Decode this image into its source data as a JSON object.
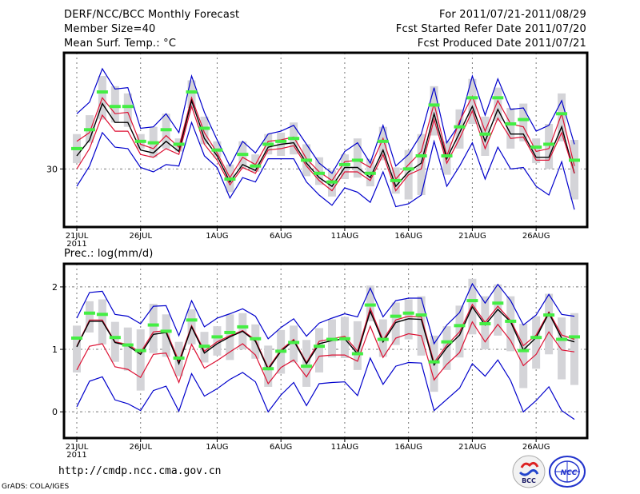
{
  "header": {
    "title": "DERF/NCC/BCC Monthly Forecast",
    "member_size": "Member Size=40",
    "variable": "Mean Surf. Temp.: °C",
    "period": "For 2011/07/21-2011/08/29",
    "started": "Fcst Started Refer Date 2011/07/20",
    "produced": "Fcst Produced Date 2011/07/21"
  },
  "footer": {
    "url": "http://cmdp.ncc.cma.gov.cn",
    "credit": "GrADS: COLA/IGES",
    "logos": [
      {
        "icon": "bcc-logo-icon",
        "label": "BCC"
      },
      {
        "icon": "ncc-logo-icon",
        "label": "NCC"
      }
    ]
  },
  "colors": {
    "envelope_outer": "#0000cc",
    "envelope_inner": "#dd1133",
    "mean": "#000000",
    "marker": "#44ee44",
    "spread_box": "#d4d4d8",
    "grid": "#777777"
  },
  "chart_data": [
    {
      "type": "line",
      "title": "Mean Surf. Temp.: °C",
      "xlabel": "",
      "ylabel": "°C",
      "x_tick_labels": [
        "21JUL",
        "26JUL",
        "1AUG",
        "6AUG",
        "11AUG",
        "16AUG",
        "21AUG",
        "26AUG"
      ],
      "x_tick_days": [
        0,
        5,
        11,
        16,
        21,
        26,
        31,
        36
      ],
      "x_year_label": "2011",
      "y_ticks": [
        30
      ],
      "ylim": [
        26,
        38
      ],
      "grid": true,
      "days": 40,
      "series": [
        {
          "name": "max",
          "role": "outer-upper",
          "values": [
            33.8,
            34.6,
            36.9,
            35.5,
            35.6,
            32.8,
            32.9,
            33.8,
            32.5,
            36.4,
            33.9,
            32.0,
            30.2,
            31.9,
            31.1,
            32.4,
            32.6,
            33.0,
            31.7,
            30.4,
            29.7,
            31.2,
            31.8,
            30.4,
            33.0,
            30.2,
            31.0,
            32.4,
            35.6,
            31.8,
            33.1,
            36.4,
            33.7,
            36.2,
            34.1,
            34.2,
            32.6,
            33.0,
            34.7,
            31.7
          ]
        },
        {
          "name": "upper",
          "role": "inner-upper",
          "values": [
            31.9,
            32.5,
            34.9,
            33.8,
            33.9,
            31.7,
            31.4,
            32.3,
            31.5,
            34.9,
            32.5,
            31.1,
            29.4,
            30.8,
            30.3,
            31.9,
            32.0,
            32.2,
            30.7,
            29.8,
            29.2,
            30.5,
            30.6,
            30.1,
            32.1,
            29.3,
            30.3,
            31.2,
            34.5,
            30.9,
            33.3,
            35.0,
            32.6,
            34.7,
            33.1,
            32.9,
            31.2,
            31.4,
            33.8,
            30.2
          ]
        },
        {
          "name": "mean",
          "role": "mean",
          "values": [
            30.9,
            32.0,
            34.5,
            33.2,
            33.2,
            31.3,
            31.1,
            31.9,
            31.2,
            34.7,
            32.1,
            30.9,
            29.1,
            30.3,
            29.9,
            31.5,
            31.7,
            31.8,
            30.4,
            29.4,
            28.8,
            30.1,
            30.1,
            29.4,
            31.3,
            28.8,
            29.8,
            30.4,
            33.8,
            30.7,
            32.5,
            34.3,
            31.9,
            34.1,
            32.4,
            32.4,
            30.8,
            30.8,
            32.9,
            29.7
          ]
        },
        {
          "name": "lower",
          "role": "inner-lower",
          "values": [
            30.0,
            31.4,
            33.7,
            32.6,
            32.6,
            31.0,
            30.8,
            31.4,
            31.0,
            34.3,
            31.7,
            30.6,
            28.9,
            30.1,
            29.7,
            31.3,
            31.4,
            31.6,
            30.2,
            29.2,
            28.5,
            29.8,
            29.8,
            29.2,
            31.0,
            28.5,
            29.6,
            30.0,
            33.4,
            30.4,
            32.1,
            34.0,
            31.4,
            33.5,
            32.1,
            32.2,
            30.6,
            30.6,
            32.5,
            29.7
          ]
        },
        {
          "name": "min",
          "role": "outer-lower",
          "values": [
            28.8,
            30.2,
            32.5,
            31.5,
            31.4,
            30.1,
            29.8,
            30.3,
            30.2,
            33.2,
            30.9,
            30.1,
            28.0,
            29.4,
            29.1,
            30.7,
            30.7,
            30.7,
            29.1,
            28.2,
            27.5,
            28.7,
            28.4,
            27.7,
            29.8,
            27.4,
            27.6,
            28.2,
            31.9,
            28.8,
            30.2,
            31.8,
            29.3,
            31.5,
            30.0,
            30.1,
            28.8,
            28.2,
            30.5,
            27.2
          ]
        },
        {
          "name": "marker",
          "role": "marker",
          "values": [
            31.4,
            32.7,
            35.3,
            34.3,
            34.3,
            31.9,
            31.8,
            32.7,
            31.7,
            35.3,
            32.8,
            31.3,
            29.3,
            31.0,
            30.2,
            31.7,
            31.9,
            32.1,
            30.6,
            29.7,
            29.1,
            30.3,
            30.6,
            29.7,
            31.9,
            29.2,
            30.0,
            30.9,
            34.4,
            30.9,
            32.9,
            34.9,
            32.4,
            34.9,
            33.1,
            33.4,
            31.5,
            31.7,
            33.8,
            30.6
          ]
        }
      ],
      "spread_boxes": [
        [
          30.4,
          32.4
        ],
        [
          31.8,
          33.7
        ],
        [
          33.4,
          36.4
        ],
        [
          33.2,
          35.7
        ],
        [
          32.9,
          35.2
        ],
        [
          31.4,
          32.4
        ],
        [
          30.8,
          32.9
        ],
        [
          31.4,
          33.8
        ],
        [
          31.2,
          32.1
        ],
        [
          34.2,
          36.1
        ],
        [
          31.7,
          33.6
        ],
        [
          30.8,
          31.9
        ],
        [
          28.4,
          30.3
        ],
        [
          30.0,
          31.9
        ],
        [
          29.8,
          31.0
        ],
        [
          31.0,
          32.4
        ],
        [
          30.9,
          32.5
        ],
        [
          31.0,
          33.2
        ],
        [
          29.5,
          31.7
        ],
        [
          28.9,
          30.8
        ],
        [
          28.1,
          29.9
        ],
        [
          29.3,
          31.0
        ],
        [
          29.4,
          32.1
        ],
        [
          28.8,
          30.7
        ],
        [
          30.6,
          32.9
        ],
        [
          28.3,
          30.1
        ],
        [
          27.9,
          31.3
        ],
        [
          28.2,
          32.4
        ],
        [
          32.3,
          35.7
        ],
        [
          29.6,
          31.9
        ],
        [
          31.4,
          34.1
        ],
        [
          33.1,
          36.2
        ],
        [
          30.9,
          33.6
        ],
        [
          33.3,
          35.6
        ],
        [
          31.4,
          34.2
        ],
        [
          31.9,
          34.5
        ],
        [
          30.4,
          32.1
        ],
        [
          30.0,
          33.1
        ],
        [
          31.9,
          35.2
        ],
        [
          27.9,
          32.0
        ]
      ]
    },
    {
      "type": "line",
      "title": "Prec.: log(mm/d)",
      "xlabel": "",
      "ylabel": "log(mm/d)",
      "x_tick_labels": [
        "21JUL",
        "26JUL",
        "1AUG",
        "6AUG",
        "11AUG",
        "16AUG",
        "21AUG",
        "26AUG"
      ],
      "x_tick_days": [
        0,
        5,
        11,
        16,
        21,
        26,
        31,
        36
      ],
      "x_year_label": "2011",
      "y_ticks": [
        0,
        1,
        2
      ],
      "y_tick_labels": [
        "0",
        "1",
        "2"
      ],
      "ylim": [
        -0.42,
        2.37
      ],
      "grid": true,
      "days": 40,
      "series": [
        {
          "name": "max",
          "role": "outer-upper",
          "values": [
            1.5,
            1.91,
            1.93,
            1.56,
            1.53,
            1.41,
            1.69,
            1.7,
            1.22,
            1.78,
            1.36,
            1.5,
            1.57,
            1.65,
            1.53,
            1.17,
            1.35,
            1.49,
            1.21,
            1.42,
            1.5,
            1.57,
            1.52,
            1.98,
            1.52,
            1.78,
            1.82,
            1.82,
            1.09,
            1.39,
            1.59,
            2.05,
            1.74,
            2.04,
            1.78,
            1.39,
            1.55,
            1.88,
            1.56,
            1.53
          ]
        },
        {
          "name": "upper",
          "role": "inner-upper",
          "values": [
            1.05,
            1.47,
            1.47,
            1.12,
            1.08,
            0.95,
            1.28,
            1.3,
            0.81,
            1.38,
            0.97,
            1.12,
            1.22,
            1.3,
            1.15,
            0.7,
            0.99,
            1.16,
            0.79,
            1.13,
            1.17,
            1.21,
            0.97,
            1.66,
            1.15,
            1.47,
            1.53,
            1.52,
            0.79,
            1.07,
            1.28,
            1.72,
            1.43,
            1.69,
            1.46,
            1.06,
            1.23,
            1.6,
            1.23,
            1.16
          ]
        },
        {
          "name": "mean",
          "role": "mean",
          "values": [
            1.04,
            1.45,
            1.45,
            1.11,
            1.06,
            0.92,
            1.24,
            1.27,
            0.77,
            1.36,
            0.94,
            1.09,
            1.2,
            1.29,
            1.13,
            0.68,
            0.97,
            1.14,
            0.77,
            1.09,
            1.14,
            1.17,
            0.93,
            1.61,
            1.12,
            1.43,
            1.49,
            1.48,
            0.75,
            1.03,
            1.23,
            1.68,
            1.39,
            1.64,
            1.44,
            0.99,
            1.19,
            1.58,
            1.18,
            1.12
          ]
        },
        {
          "name": "lower",
          "role": "inner-lower",
          "values": [
            0.67,
            1.05,
            1.09,
            0.72,
            0.68,
            0.55,
            0.92,
            0.94,
            0.47,
            1.08,
            0.7,
            0.82,
            0.96,
            1.09,
            0.91,
            0.45,
            0.71,
            0.83,
            0.56,
            0.89,
            0.91,
            0.91,
            0.81,
            1.37,
            0.87,
            1.18,
            1.25,
            1.22,
            0.51,
            0.76,
            0.95,
            1.44,
            1.12,
            1.4,
            1.14,
            0.74,
            0.92,
            1.28,
            0.99,
            0.96
          ]
        },
        {
          "name": "min",
          "role": "outer-lower",
          "values": [
            0.08,
            0.49,
            0.56,
            0.19,
            0.13,
            0.02,
            0.34,
            0.41,
            0.01,
            0.61,
            0.25,
            0.37,
            0.52,
            0.63,
            0.48,
            0.0,
            0.27,
            0.47,
            0.1,
            0.45,
            0.47,
            0.48,
            0.26,
            0.86,
            0.44,
            0.73,
            0.79,
            0.78,
            0.02,
            0.2,
            0.38,
            0.77,
            0.57,
            0.83,
            0.5,
            0.0,
            0.18,
            0.4,
            0.02,
            -0.12
          ]
        },
        {
          "name": "marker",
          "role": "marker",
          "values": [
            1.18,
            1.58,
            1.56,
            1.19,
            1.07,
            0.98,
            1.39,
            1.29,
            0.86,
            1.47,
            1.05,
            1.2,
            1.27,
            1.36,
            1.17,
            0.69,
            0.97,
            1.11,
            0.73,
            1.05,
            1.16,
            1.17,
            0.93,
            1.71,
            1.16,
            1.53,
            1.58,
            1.55,
            0.8,
            1.12,
            1.38,
            1.78,
            1.41,
            1.74,
            1.45,
            0.98,
            1.19,
            1.55,
            1.16,
            1.2
          ]
        }
      ],
      "spread_boxes": [
        [
          0.63,
          1.38
        ],
        [
          1.27,
          1.77
        ],
        [
          1.08,
          1.8
        ],
        [
          0.8,
          1.44
        ],
        [
          0.66,
          1.35
        ],
        [
          0.34,
          1.32
        ],
        [
          0.94,
          1.73
        ],
        [
          0.88,
          1.56
        ],
        [
          0.57,
          1.12
        ],
        [
          1.08,
          1.64
        ],
        [
          0.79,
          1.28
        ],
        [
          0.9,
          1.37
        ],
        [
          0.83,
          1.56
        ],
        [
          1.0,
          1.58
        ],
        [
          0.85,
          1.4
        ],
        [
          0.4,
          1.06
        ],
        [
          0.61,
          1.31
        ],
        [
          0.79,
          1.38
        ],
        [
          0.4,
          1.15
        ],
        [
          0.63,
          1.34
        ],
        [
          0.87,
          1.48
        ],
        [
          0.86,
          1.52
        ],
        [
          0.67,
          1.45
        ],
        [
          1.45,
          2.02
        ],
        [
          0.88,
          1.48
        ],
        [
          1.07,
          1.75
        ],
        [
          1.16,
          1.8
        ],
        [
          0.9,
          1.85
        ],
        [
          0.32,
          1.22
        ],
        [
          0.67,
          1.37
        ],
        [
          0.87,
          1.7
        ],
        [
          1.24,
          2.13
        ],
        [
          1.0,
          1.85
        ],
        [
          1.22,
          2.04
        ],
        [
          0.97,
          1.85
        ],
        [
          0.38,
          1.41
        ],
        [
          0.69,
          1.53
        ],
        [
          0.92,
          1.89
        ],
        [
          0.52,
          1.51
        ],
        [
          0.43,
          1.58
        ]
      ]
    }
  ]
}
